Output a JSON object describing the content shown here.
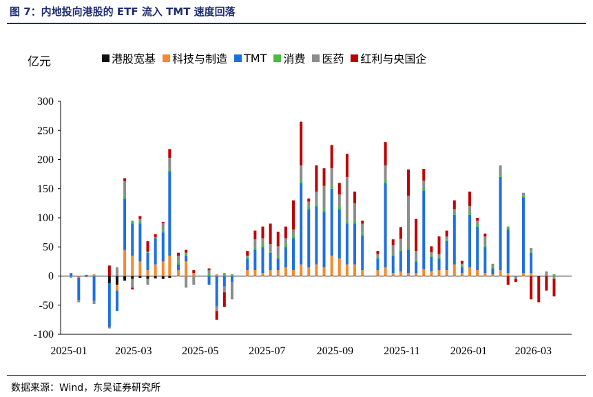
{
  "title": "图 7：内地投向港股的 ETF 流入 TMT 速度回落",
  "source": "数据来源：Wind，东吴证券研究所",
  "chart_data": {
    "type": "bar",
    "stacked": true,
    "unit": "亿元",
    "ylim": [
      -100,
      300
    ],
    "yticks": [
      -100,
      -50,
      0,
      50,
      100,
      150,
      200,
      250,
      300
    ],
    "xticks": [
      "2025-01",
      "2025-03",
      "2025-05",
      "2025-07",
      "2025-09",
      "2025-11",
      "2026-01",
      "2026-03"
    ],
    "legend_position": "top",
    "grid": false,
    "series": [
      {
        "name": "港股宽基",
        "color": "#111111"
      },
      {
        "name": "科技与制造",
        "color": "#f28a30"
      },
      {
        "name": "TMT",
        "color": "#1f6fe0"
      },
      {
        "name": "消费",
        "color": "#4cb944"
      },
      {
        "name": "医药",
        "color": "#8c8c8c"
      },
      {
        "name": "红利与央国企",
        "color": "#c00000"
      }
    ],
    "weeks": [
      {
        "date": "2025-01-03",
        "values": [
          0,
          0,
          5,
          0,
          -3,
          0
        ]
      },
      {
        "date": "2025-01-10",
        "values": [
          0,
          -3,
          -38,
          0,
          -4,
          0
        ]
      },
      {
        "date": "2025-01-17",
        "values": [
          0,
          0,
          2,
          0,
          -2,
          0
        ]
      },
      {
        "date": "2025-01-24",
        "values": [
          0,
          3,
          -43,
          0,
          -5,
          0
        ]
      },
      {
        "date": "2025-02-07",
        "values": [
          -12,
          0,
          -75,
          0,
          -3,
          18
        ]
      },
      {
        "date": "2025-02-14",
        "values": [
          -15,
          -10,
          -35,
          0,
          15,
          0
        ]
      },
      {
        "date": "2025-02-21",
        "values": [
          -8,
          45,
          88,
          5,
          25,
          5
        ]
      },
      {
        "date": "2025-02-28",
        "values": [
          -5,
          35,
          55,
          5,
          -15,
          -3
        ]
      },
      {
        "date": "2025-03-07",
        "values": [
          -3,
          25,
          65,
          3,
          5,
          5
        ]
      },
      {
        "date": "2025-03-14",
        "values": [
          -5,
          10,
          30,
          2,
          -10,
          18
        ]
      },
      {
        "date": "2025-03-21",
        "values": [
          -3,
          20,
          45,
          2,
          -2,
          5
        ]
      },
      {
        "date": "2025-03-28",
        "values": [
          -5,
          25,
          50,
          3,
          13,
          2
        ]
      },
      {
        "date": "2025-04-03",
        "values": [
          -3,
          35,
          145,
          3,
          20,
          15
        ]
      },
      {
        "date": "2025-04-11",
        "values": [
          0,
          10,
          10,
          5,
          10,
          5
        ]
      },
      {
        "date": "2025-04-18",
        "values": [
          0,
          25,
          10,
          5,
          -20,
          5
        ]
      },
      {
        "date": "2025-04-25",
        "values": [
          0,
          5,
          0,
          0,
          -15,
          5
        ]
      },
      {
        "date": "2025-05-09",
        "values": [
          0,
          0,
          -15,
          5,
          5,
          3
        ]
      },
      {
        "date": "2025-05-16",
        "values": [
          0,
          3,
          -52,
          0,
          -8,
          -15
        ]
      },
      {
        "date": "2025-05-23",
        "values": [
          0,
          0,
          -18,
          5,
          -10,
          -25
        ]
      },
      {
        "date": "2025-05-30",
        "values": [
          0,
          0,
          -10,
          3,
          -30,
          0
        ]
      },
      {
        "date": "2025-06-13",
        "values": [
          0,
          10,
          20,
          3,
          2,
          8
        ]
      },
      {
        "date": "2025-06-20",
        "values": [
          0,
          10,
          35,
          3,
          15,
          15
        ]
      },
      {
        "date": "2025-06-27",
        "values": [
          0,
          5,
          45,
          5,
          10,
          20
        ]
      },
      {
        "date": "2025-07-04",
        "values": [
          0,
          10,
          30,
          3,
          12,
          35
        ]
      },
      {
        "date": "2025-07-11",
        "values": [
          0,
          10,
          20,
          3,
          18,
          25
        ]
      },
      {
        "date": "2025-07-18",
        "values": [
          0,
          15,
          35,
          5,
          10,
          20
        ]
      },
      {
        "date": "2025-07-25",
        "values": [
          0,
          10,
          55,
          5,
          10,
          50
        ]
      },
      {
        "date": "2025-08-01",
        "values": [
          0,
          20,
          140,
          5,
          25,
          75
        ]
      },
      {
        "date": "2025-08-08",
        "values": [
          0,
          15,
          100,
          5,
          8,
          5
        ]
      },
      {
        "date": "2025-08-15",
        "values": [
          0,
          20,
          100,
          5,
          20,
          45
        ]
      },
      {
        "date": "2025-08-22",
        "values": [
          0,
          15,
          95,
          5,
          40,
          30
        ]
      },
      {
        "date": "2025-08-29",
        "values": [
          0,
          35,
          115,
          5,
          30,
          40
        ]
      },
      {
        "date": "2025-09-05",
        "values": [
          0,
          30,
          85,
          5,
          20,
          20
        ]
      },
      {
        "date": "2025-09-12",
        "values": [
          0,
          20,
          70,
          5,
          75,
          40
        ]
      },
      {
        "date": "2025-09-19",
        "values": [
          0,
          20,
          70,
          5,
          30,
          20
        ]
      },
      {
        "date": "2025-09-26",
        "values": [
          0,
          10,
          60,
          5,
          15,
          5
        ]
      },
      {
        "date": "2025-10-10",
        "values": [
          0,
          10,
          20,
          3,
          5,
          5
        ]
      },
      {
        "date": "2025-10-17",
        "values": [
          0,
          15,
          145,
          5,
          25,
          40
        ]
      },
      {
        "date": "2025-10-24",
        "values": [
          0,
          5,
          30,
          3,
          15,
          10
        ]
      },
      {
        "date": "2025-10-31",
        "values": [
          0,
          8,
          35,
          3,
          18,
          20
        ]
      },
      {
        "date": "2025-11-07",
        "values": [
          0,
          5,
          40,
          3,
          90,
          45
        ]
      },
      {
        "date": "2025-11-14",
        "values": [
          0,
          5,
          20,
          3,
          15,
          55
        ]
      },
      {
        "date": "2025-11-21",
        "values": [
          0,
          12,
          135,
          5,
          12,
          20
        ]
      },
      {
        "date": "2025-11-28",
        "values": [
          0,
          8,
          25,
          3,
          5,
          10
        ]
      },
      {
        "date": "2025-12-05",
        "values": [
          0,
          10,
          20,
          3,
          5,
          30
        ]
      },
      {
        "date": "2025-12-12",
        "values": [
          0,
          10,
          50,
          3,
          5,
          10
        ]
      },
      {
        "date": "2025-12-19",
        "values": [
          0,
          20,
          85,
          5,
          5,
          15
        ]
      },
      {
        "date": "2025-12-26",
        "values": [
          0,
          5,
          10,
          3,
          3,
          5
        ]
      },
      {
        "date": "2026-01-02",
        "values": [
          0,
          15,
          90,
          5,
          10,
          25
        ]
      },
      {
        "date": "2026-01-09",
        "values": [
          0,
          10,
          75,
          5,
          5,
          5
        ]
      },
      {
        "date": "2026-01-16",
        "values": [
          0,
          5,
          45,
          3,
          15,
          5
        ]
      },
      {
        "date": "2026-01-23",
        "values": [
          0,
          3,
          10,
          3,
          5,
          0
        ]
      },
      {
        "date": "2026-01-30",
        "values": [
          0,
          10,
          160,
          5,
          15,
          0
        ]
      },
      {
        "date": "2026-02-06",
        "values": [
          0,
          5,
          75,
          5,
          0,
          -15
        ]
      },
      {
        "date": "2026-02-13",
        "values": [
          0,
          0,
          0,
          0,
          -5,
          -5
        ]
      },
      {
        "date": "2026-02-20",
        "values": [
          0,
          5,
          130,
          3,
          5,
          0
        ]
      },
      {
        "date": "2026-02-27",
        "values": [
          0,
          5,
          35,
          3,
          5,
          -40
        ]
      },
      {
        "date": "2026-03-06",
        "values": [
          0,
          0,
          0,
          0,
          0,
          -45
        ]
      },
      {
        "date": "2026-03-13",
        "values": [
          0,
          0,
          0,
          0,
          8,
          -25
        ]
      },
      {
        "date": "2026-03-20",
        "values": [
          0,
          0,
          0,
          3,
          -5,
          -30
        ]
      }
    ]
  }
}
